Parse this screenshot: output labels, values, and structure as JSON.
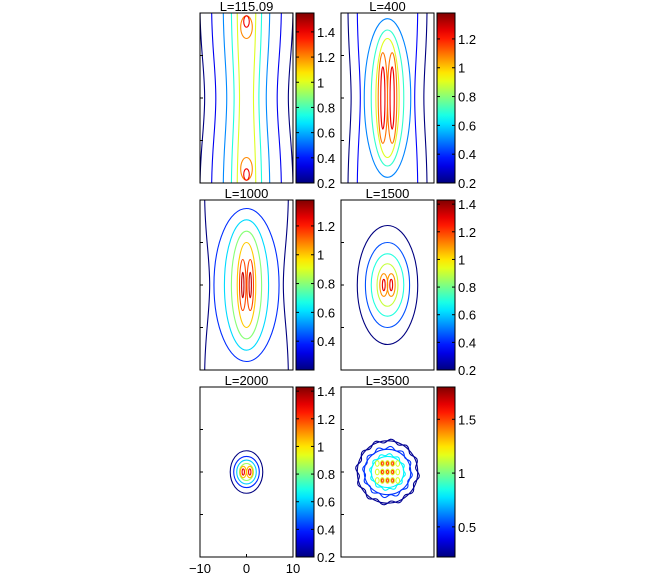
{
  "chart_data": [
    {
      "type": "contour",
      "title": "L=115.09",
      "colorbar": {
        "range": [
          0.2,
          1.55
        ],
        "ticks": [
          "0.2",
          "0.4",
          "0.6",
          "0.8",
          "1",
          "1.2",
          "1.4"
        ]
      },
      "contours": [
        {
          "level": 0.2,
          "shape": "band",
          "cx": 0,
          "cy": 0,
          "w": 20,
          "h": 30,
          "pinch": 0.1
        },
        {
          "level": 0.35,
          "shape": "band",
          "cx": 0,
          "cy": 0,
          "w": 15,
          "h": 30,
          "pinch": 0.12
        },
        {
          "level": 0.55,
          "shape": "band",
          "cx": 0,
          "cy": 0,
          "w": 10,
          "h": 30,
          "pinch": 0.15
        },
        {
          "level": 0.75,
          "shape": "band",
          "cx": 0,
          "cy": 0,
          "w": 6.5,
          "h": 30,
          "pinch": 0.18
        },
        {
          "level": 1.0,
          "shape": "band",
          "cx": 0,
          "cy": 0,
          "w": 4,
          "h": 30,
          "pinch": 0.25
        },
        {
          "level": 1.2,
          "shape": "ellipse",
          "cx": 0,
          "cy": 12.5,
          "w": 2.5,
          "h": 4
        },
        {
          "level": 1.2,
          "shape": "ellipse",
          "cx": 0,
          "cy": -12.5,
          "w": 2.5,
          "h": 4
        },
        {
          "level": 1.4,
          "shape": "ellipse",
          "cx": 0,
          "cy": 13.5,
          "w": 1.2,
          "h": 2
        },
        {
          "level": 1.4,
          "shape": "ellipse",
          "cx": 0,
          "cy": -13.5,
          "w": 1.2,
          "h": 2
        }
      ]
    },
    {
      "type": "contour",
      "title": "L=400",
      "colorbar": {
        "range": [
          0.2,
          1.38
        ],
        "ticks": [
          "0.2",
          "0.4",
          "0.6",
          "0.8",
          "1",
          "1.2"
        ]
      },
      "contours": [
        {
          "level": 0.2,
          "shape": "band",
          "cx": 0,
          "cy": 0,
          "w": 17,
          "h": 30,
          "pinch": 0.08
        },
        {
          "level": 0.35,
          "shape": "band",
          "cx": 0,
          "cy": 0,
          "w": 13,
          "h": 30,
          "pinch": 0.1
        },
        {
          "level": 0.5,
          "shape": "ellipse",
          "cx": 0,
          "cy": 0,
          "w": 10,
          "h": 28
        },
        {
          "level": 0.7,
          "shape": "ellipse",
          "cx": 0,
          "cy": 0,
          "w": 7,
          "h": 24
        },
        {
          "level": 0.9,
          "shape": "ellipse",
          "cx": 0,
          "cy": 0,
          "w": 5,
          "h": 21
        },
        {
          "level": 1.1,
          "shape": "ellipse",
          "cx": -1,
          "cy": 0,
          "w": 2,
          "h": 16
        },
        {
          "level": 1.1,
          "shape": "ellipse",
          "cx": 1,
          "cy": 0,
          "w": 2,
          "h": 16
        },
        {
          "level": 1.25,
          "shape": "ellipse",
          "cx": -1,
          "cy": 0,
          "w": 0.9,
          "h": 11
        },
        {
          "level": 1.25,
          "shape": "ellipse",
          "cx": 1,
          "cy": 0,
          "w": 0.9,
          "h": 11
        }
      ]
    },
    {
      "type": "contour",
      "title": "L=1000",
      "colorbar": {
        "range": [
          0.2,
          1.38
        ],
        "ticks": [
          "0.4",
          "0.6",
          "0.8",
          "1",
          "1.2"
        ]
      },
      "contours": [
        {
          "level": 0.2,
          "shape": "band",
          "cx": 0,
          "cy": 0,
          "w": 18,
          "h": 30,
          "pinch": 0.12
        },
        {
          "level": 0.4,
          "shape": "ellipse",
          "cx": 0,
          "cy": 0,
          "w": 14,
          "h": 27
        },
        {
          "level": 0.6,
          "shape": "ellipse",
          "cx": 0,
          "cy": 0,
          "w": 9.5,
          "h": 23
        },
        {
          "level": 0.8,
          "shape": "ellipse",
          "cx": 0,
          "cy": 0,
          "w": 6.5,
          "h": 19
        },
        {
          "level": 1.0,
          "shape": "ellipse",
          "cx": 0,
          "cy": 0,
          "w": 4,
          "h": 15
        },
        {
          "level": 1.15,
          "shape": "ellipse",
          "cx": -0.8,
          "cy": 0,
          "w": 1.4,
          "h": 9
        },
        {
          "level": 1.15,
          "shape": "ellipse",
          "cx": 0.8,
          "cy": 0,
          "w": 1.4,
          "h": 9
        },
        {
          "level": 1.3,
          "shape": "ellipse",
          "cx": -0.8,
          "cy": 0,
          "w": 0.5,
          "h": 4.5
        },
        {
          "level": 1.3,
          "shape": "ellipse",
          "cx": 0.8,
          "cy": 0,
          "w": 0.5,
          "h": 4.5
        }
      ]
    },
    {
      "type": "contour",
      "title": "L=1500",
      "colorbar": {
        "range": [
          0.2,
          1.43
        ],
        "ticks": [
          "0.2",
          "0.4",
          "0.6",
          "0.8",
          "1",
          "1.2",
          "1.4"
        ]
      },
      "contours": [
        {
          "level": 0.2,
          "shape": "ellipse",
          "cx": 0,
          "cy": 0,
          "w": 13,
          "h": 21
        },
        {
          "level": 0.45,
          "shape": "ellipse",
          "cx": 0,
          "cy": 0,
          "w": 9.5,
          "h": 15
        },
        {
          "level": 0.7,
          "shape": "ellipse",
          "cx": 0,
          "cy": 0,
          "w": 7,
          "h": 11
        },
        {
          "level": 0.9,
          "shape": "ellipse",
          "cx": 0,
          "cy": 0,
          "w": 4.5,
          "h": 7.5
        },
        {
          "level": 1.1,
          "shape": "ellipse",
          "cx": -0.8,
          "cy": 0,
          "w": 1.7,
          "h": 4
        },
        {
          "level": 1.1,
          "shape": "ellipse",
          "cx": 0.8,
          "cy": 0,
          "w": 1.7,
          "h": 4
        },
        {
          "level": 1.3,
          "shape": "ellipse",
          "cx": -0.8,
          "cy": 0,
          "w": 0.6,
          "h": 2
        },
        {
          "level": 1.3,
          "shape": "ellipse",
          "cx": 0.8,
          "cy": 0,
          "w": 0.6,
          "h": 2
        }
      ]
    },
    {
      "type": "contour",
      "title": "L=2000",
      "colorbar": {
        "range": [
          0.2,
          1.43
        ],
        "ticks": [
          "0.2",
          "0.4",
          "0.6",
          "0.8",
          "1",
          "1.2",
          "1.4"
        ]
      },
      "contours": [
        {
          "level": 0.2,
          "shape": "ellipse",
          "cx": 0,
          "cy": 0,
          "w": 7,
          "h": 7.5
        },
        {
          "level": 0.4,
          "shape": "ellipse",
          "cx": 0,
          "cy": 0,
          "w": 5.5,
          "h": 5.5
        },
        {
          "level": 0.6,
          "shape": "ellipse",
          "cx": 0,
          "cy": 0,
          "w": 4.2,
          "h": 4.2
        },
        {
          "level": 0.85,
          "shape": "ellipse",
          "cx": 0,
          "cy": 0,
          "w": 3,
          "h": 3
        },
        {
          "level": 1.05,
          "shape": "ellipse",
          "cx": -0.7,
          "cy": 0,
          "w": 1.3,
          "h": 2
        },
        {
          "level": 1.05,
          "shape": "ellipse",
          "cx": 0.7,
          "cy": 0,
          "w": 1.3,
          "h": 2
        },
        {
          "level": 1.3,
          "shape": "ellipse",
          "cx": -0.7,
          "cy": 0,
          "w": 0.5,
          "h": 1.1
        },
        {
          "level": 1.3,
          "shape": "ellipse",
          "cx": 0.7,
          "cy": 0,
          "w": 0.5,
          "h": 1.1
        }
      ]
    },
    {
      "type": "contour",
      "title": "L=3500",
      "colorbar": {
        "range": [
          0.22,
          1.8
        ],
        "ticks": [
          "0.5",
          "1",
          "1.5"
        ]
      },
      "contours": [
        {
          "level": 0.25,
          "shape": "ellipse",
          "cx": 0,
          "cy": 0,
          "w": 13,
          "h": 11
        },
        {
          "level": 0.5,
          "shape": "ellipse",
          "cx": 0,
          "cy": 0,
          "w": 10,
          "h": 8
        },
        {
          "level": 0.8,
          "shape": "ellipse",
          "cx": 0,
          "cy": 0,
          "w": 7,
          "h": 5.5
        },
        {
          "level": 1.15,
          "shape": "grid",
          "cx": 0,
          "cy": 0,
          "cols": [
            -2.2,
            -1.1,
            0,
            1.1,
            2.2
          ],
          "rows": [
            -1.5,
            0,
            1.5
          ],
          "w": 0.8,
          "h": 1
        },
        {
          "level": 1.5,
          "shape": "grid",
          "cx": 0,
          "cy": 0,
          "cols": [
            -1.1,
            0,
            1.1
          ],
          "rows": [
            -1.5,
            0,
            1.5
          ],
          "w": 0.4,
          "h": 0.6
        }
      ]
    }
  ],
  "x_axis": {
    "ticks": [
      "−10",
      "0",
      "10"
    ]
  }
}
